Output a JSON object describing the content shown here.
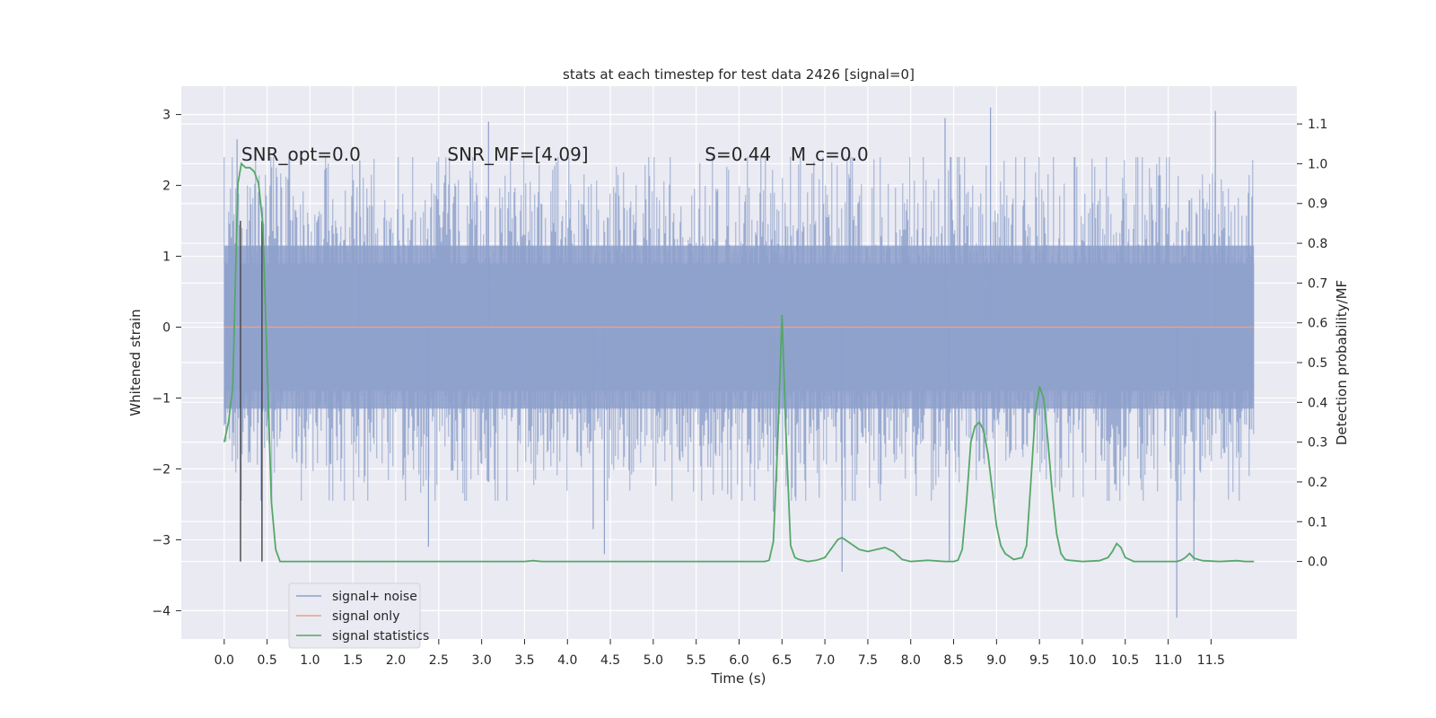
{
  "chart_data": {
    "type": "line",
    "title": "stats at each timestep for test data 2426 [signal=0]",
    "xlabel": "Time (s)",
    "ylabel": "Whitened strain",
    "y2label": "Detection probability/MF",
    "xlim": [
      -0.5,
      12.5
    ],
    "ylim": [
      -4.4,
      3.4
    ],
    "y2lim": [
      -0.195,
      1.195
    ],
    "x_ticks": [
      0.0,
      0.5,
      1.0,
      1.5,
      2.0,
      2.5,
      3.0,
      3.5,
      4.0,
      4.5,
      5.0,
      5.5,
      6.0,
      6.5,
      7.0,
      7.5,
      8.0,
      8.5,
      9.0,
      9.5,
      10.0,
      10.5,
      11.0,
      11.5
    ],
    "x_tick_labels": [
      "0.0",
      "0.5",
      "1.0",
      "1.5",
      "2.0",
      "2.5",
      "3.0",
      "3.5",
      "4.0",
      "4.5",
      "5.0",
      "5.5",
      "6.0",
      "6.5",
      "7.0",
      "7.5",
      "8.0",
      "8.5",
      "9.0",
      "9.5",
      "10.0",
      "10.5",
      "11.0",
      "11.5"
    ],
    "y_ticks": [
      3,
      2,
      1,
      0,
      -1,
      -2,
      -3,
      -4
    ],
    "y_tick_labels": [
      "3",
      "2",
      "1",
      "0",
      "−1",
      "−2",
      "−3",
      "−4"
    ],
    "y2_ticks": [
      1.1,
      1.0,
      0.9,
      0.8,
      0.7,
      0.6,
      0.5,
      0.4,
      0.3,
      0.2,
      0.1,
      0.0
    ],
    "y2_tick_labels": [
      "1.1",
      "1.0",
      "0.9",
      "0.8",
      "0.7",
      "0.6",
      "0.5",
      "0.4",
      "0.3",
      "0.2",
      "0.1",
      "0.0"
    ],
    "grid": true,
    "legend_position": "lower-left",
    "annotations": [
      {
        "text": "SNR_opt=0.0",
        "x": 0.2,
        "y": 2.35
      },
      {
        "text": "SNR_MF=[4.09]",
        "x": 2.6,
        "y": 2.35
      },
      {
        "text": "S=0.44",
        "x": 5.6,
        "y": 2.35
      },
      {
        "text": "M_c=0.0",
        "x": 6.6,
        "y": 2.35
      }
    ],
    "vertical_markers_x": [
      0.19,
      0.44
    ],
    "series": [
      {
        "name": "signal+ noise",
        "color": "#8da0cb",
        "axis": "left",
        "note_range": "dense noise approx. between -2.3 and 2.2",
        "x_range": [
          0.0,
          12.0
        ],
        "spikes": [
          {
            "x": 0.15,
            "y": 2.65
          },
          {
            "x": 0.43,
            "y": -2.45
          },
          {
            "x": 1.58,
            "y": 2.35
          },
          {
            "x": 2.38,
            "y": -3.1
          },
          {
            "x": 3.08,
            "y": 2.9
          },
          {
            "x": 4.3,
            "y": -2.85
          },
          {
            "x": 4.43,
            "y": -3.2
          },
          {
            "x": 6.4,
            "y": -2.6
          },
          {
            "x": 7.2,
            "y": -3.45
          },
          {
            "x": 8.4,
            "y": 2.95
          },
          {
            "x": 8.45,
            "y": -3.3
          },
          {
            "x": 8.93,
            "y": 3.1
          },
          {
            "x": 11.1,
            "y": -4.1
          },
          {
            "x": 11.55,
            "y": 3.05
          },
          {
            "x": 11.3,
            "y": -3.3
          }
        ]
      },
      {
        "name": "signal only",
        "color": "#e5a08a",
        "axis": "left",
        "x": [
          0.0,
          12.0
        ],
        "y": [
          0.0,
          0.0
        ]
      },
      {
        "name": "signal statistics",
        "color": "#55a868",
        "axis": "right",
        "x": [
          0.0,
          0.05,
          0.1,
          0.13,
          0.16,
          0.2,
          0.25,
          0.3,
          0.35,
          0.4,
          0.45,
          0.5,
          0.55,
          0.6,
          0.65,
          0.7,
          0.8,
          1.0,
          2.0,
          2.5,
          3.0,
          3.5,
          3.6,
          3.7,
          4.0,
          4.5,
          5.0,
          6.0,
          6.3,
          6.35,
          6.4,
          6.45,
          6.5,
          6.55,
          6.6,
          6.65,
          6.7,
          6.8,
          6.9,
          7.0,
          7.1,
          7.15,
          7.2,
          7.3,
          7.4,
          7.5,
          7.6,
          7.7,
          7.8,
          7.9,
          8.0,
          8.2,
          8.4,
          8.5,
          8.55,
          8.6,
          8.65,
          8.7,
          8.75,
          8.8,
          8.85,
          8.9,
          8.95,
          9.0,
          9.05,
          9.1,
          9.2,
          9.3,
          9.35,
          9.4,
          9.45,
          9.5,
          9.55,
          9.6,
          9.65,
          9.7,
          9.75,
          9.8,
          9.85,
          9.9,
          10.0,
          10.2,
          10.3,
          10.35,
          10.4,
          10.45,
          10.5,
          10.6,
          11.0,
          11.1,
          11.15,
          11.2,
          11.25,
          11.3,
          11.4,
          11.6,
          11.8,
          11.9,
          12.0
        ],
        "y": [
          0.3,
          0.35,
          0.44,
          0.7,
          0.95,
          1.0,
          0.99,
          0.99,
          0.98,
          0.95,
          0.85,
          0.5,
          0.15,
          0.03,
          0.0,
          0.0,
          0.0,
          0.0,
          0.0,
          0.0,
          0.0,
          0.0,
          0.002,
          0.0,
          0.0,
          0.0,
          0.0,
          0.0,
          0.0,
          0.003,
          0.05,
          0.3,
          0.62,
          0.3,
          0.04,
          0.01,
          0.005,
          0.0,
          0.003,
          0.01,
          0.04,
          0.055,
          0.06,
          0.045,
          0.03,
          0.025,
          0.03,
          0.035,
          0.025,
          0.005,
          0.0,
          0.003,
          0.0,
          0.0,
          0.003,
          0.03,
          0.15,
          0.3,
          0.34,
          0.35,
          0.33,
          0.27,
          0.18,
          0.09,
          0.04,
          0.02,
          0.005,
          0.01,
          0.04,
          0.2,
          0.37,
          0.44,
          0.41,
          0.3,
          0.17,
          0.07,
          0.02,
          0.005,
          0.003,
          0.002,
          0.0,
          0.002,
          0.01,
          0.025,
          0.045,
          0.035,
          0.01,
          0.0,
          0.0,
          0.0,
          0.003,
          0.01,
          0.02,
          0.008,
          0.002,
          0.0,
          0.002,
          0.0,
          0.0
        ]
      }
    ]
  }
}
